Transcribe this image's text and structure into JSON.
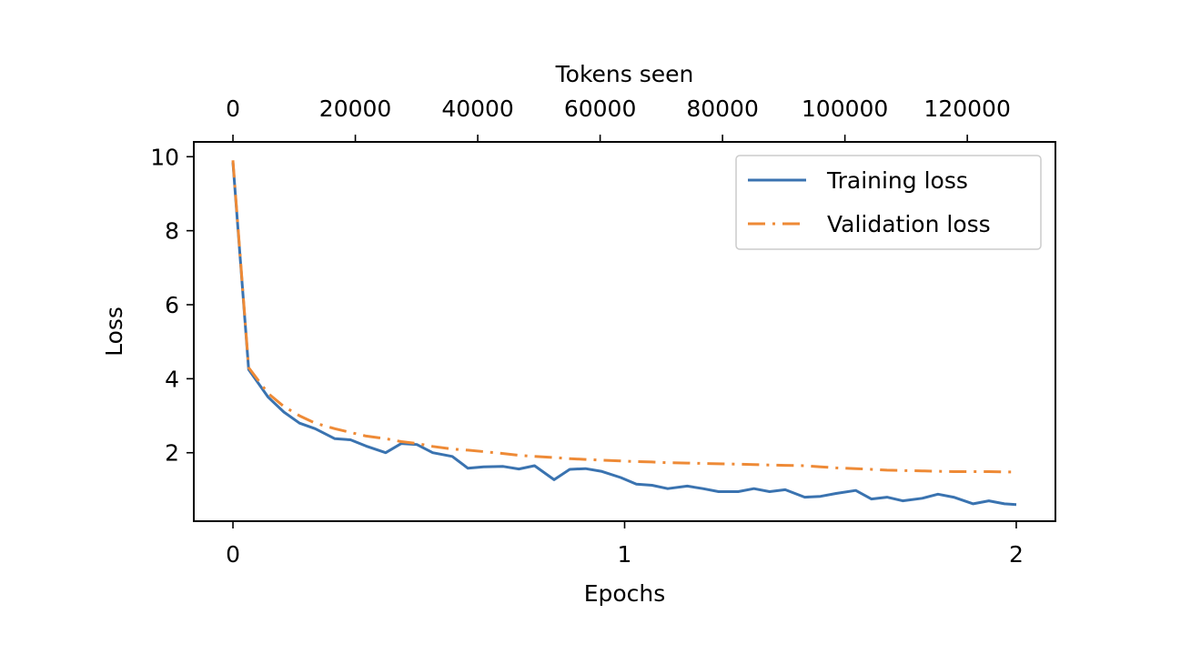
{
  "chart_data": {
    "type": "line",
    "xlabel": "Epochs",
    "ylabel": "Loss",
    "x2label": "Tokens seen",
    "xlim": [
      -0.1,
      2.1
    ],
    "ylim": [
      0.15,
      10.4
    ],
    "x2lim": [
      0,
      128000
    ],
    "x_ticks": [
      0,
      1,
      2
    ],
    "x_tick_labels": [
      "0",
      "1",
      "2"
    ],
    "y_ticks": [
      2,
      4,
      6,
      8,
      10
    ],
    "y_tick_labels": [
      "2",
      "4",
      "6",
      "8",
      "10"
    ],
    "x2_ticks": [
      0,
      20000,
      40000,
      60000,
      80000,
      100000,
      120000
    ],
    "x2_tick_labels": [
      "0",
      "20000",
      "40000",
      "60000",
      "80000",
      "100000",
      "120000"
    ],
    "legend_position": "upper-right",
    "grid": false,
    "series": [
      {
        "name": "Training loss",
        "color": "#3a73b0",
        "style": "solid",
        "x": [
          0.0,
          0.04,
          0.09,
          0.13,
          0.17,
          0.21,
          0.26,
          0.3,
          0.34,
          0.39,
          0.43,
          0.47,
          0.51,
          0.56,
          0.6,
          0.64,
          0.69,
          0.73,
          0.77,
          0.82,
          0.86,
          0.9,
          0.94,
          0.99,
          1.03,
          1.07,
          1.11,
          1.16,
          1.2,
          1.24,
          1.29,
          1.33,
          1.37,
          1.41,
          1.46,
          1.5,
          1.54,
          1.59,
          1.63,
          1.67,
          1.71,
          1.76,
          1.8,
          1.84,
          1.89,
          1.93,
          1.97,
          2.0
        ],
        "values": [
          9.85,
          4.25,
          3.5,
          3.1,
          2.8,
          2.65,
          2.38,
          2.35,
          2.18,
          2.0,
          2.25,
          2.22,
          2.0,
          1.9,
          1.58,
          1.62,
          1.63,
          1.56,
          1.65,
          1.27,
          1.55,
          1.57,
          1.5,
          1.33,
          1.15,
          1.12,
          1.03,
          1.1,
          1.03,
          0.95,
          0.95,
          1.03,
          0.95,
          1.0,
          0.8,
          0.82,
          0.9,
          0.98,
          0.75,
          0.8,
          0.7,
          0.77,
          0.88,
          0.8,
          0.62,
          0.7,
          0.62,
          0.6
        ]
      },
      {
        "name": "Validation loss",
        "color": "#ee8a36",
        "style": "dashdot",
        "x": [
          0.0,
          0.04,
          0.09,
          0.13,
          0.17,
          0.21,
          0.26,
          0.3,
          0.34,
          0.39,
          0.43,
          0.47,
          0.51,
          0.56,
          0.6,
          0.64,
          0.69,
          0.73,
          0.77,
          0.82,
          0.86,
          0.9,
          0.94,
          0.99,
          1.03,
          1.07,
          1.11,
          1.16,
          1.2,
          1.24,
          1.29,
          1.33,
          1.37,
          1.41,
          1.46,
          1.5,
          1.54,
          1.59,
          1.63,
          1.67,
          1.71,
          1.76,
          1.8,
          1.84,
          1.89,
          1.93,
          1.97,
          2.0
        ],
        "values": [
          9.9,
          4.3,
          3.6,
          3.25,
          3.0,
          2.8,
          2.65,
          2.55,
          2.45,
          2.38,
          2.3,
          2.25,
          2.17,
          2.1,
          2.07,
          2.03,
          1.98,
          1.93,
          1.9,
          1.87,
          1.84,
          1.82,
          1.8,
          1.78,
          1.76,
          1.75,
          1.73,
          1.72,
          1.71,
          1.7,
          1.69,
          1.68,
          1.67,
          1.66,
          1.65,
          1.62,
          1.59,
          1.57,
          1.55,
          1.53,
          1.52,
          1.51,
          1.5,
          1.49,
          1.49,
          1.49,
          1.48,
          1.48
        ]
      }
    ]
  }
}
